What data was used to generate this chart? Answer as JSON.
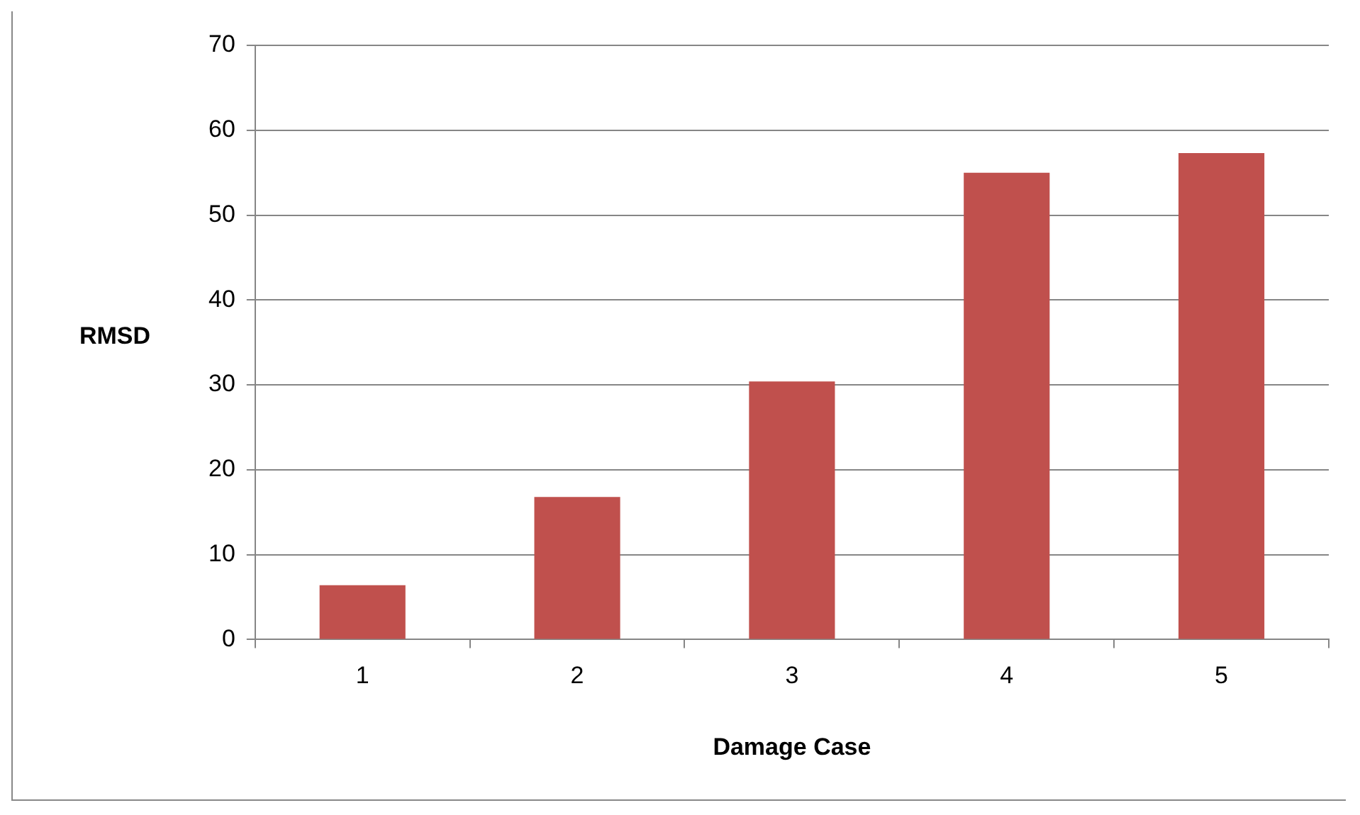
{
  "chart_data": {
    "type": "bar",
    "xlabel": "Damage Case",
    "ylabel": "RMSD",
    "categories": [
      "1",
      "2",
      "3",
      "4",
      "5"
    ],
    "values": [
      6.4,
      16.8,
      30.4,
      55.0,
      57.3
    ],
    "color": "#c0504d",
    "ylim": [
      0,
      70
    ],
    "yticks": [
      0,
      10,
      20,
      30,
      40,
      50,
      60,
      70
    ],
    "grid": "y",
    "legend": false
  }
}
